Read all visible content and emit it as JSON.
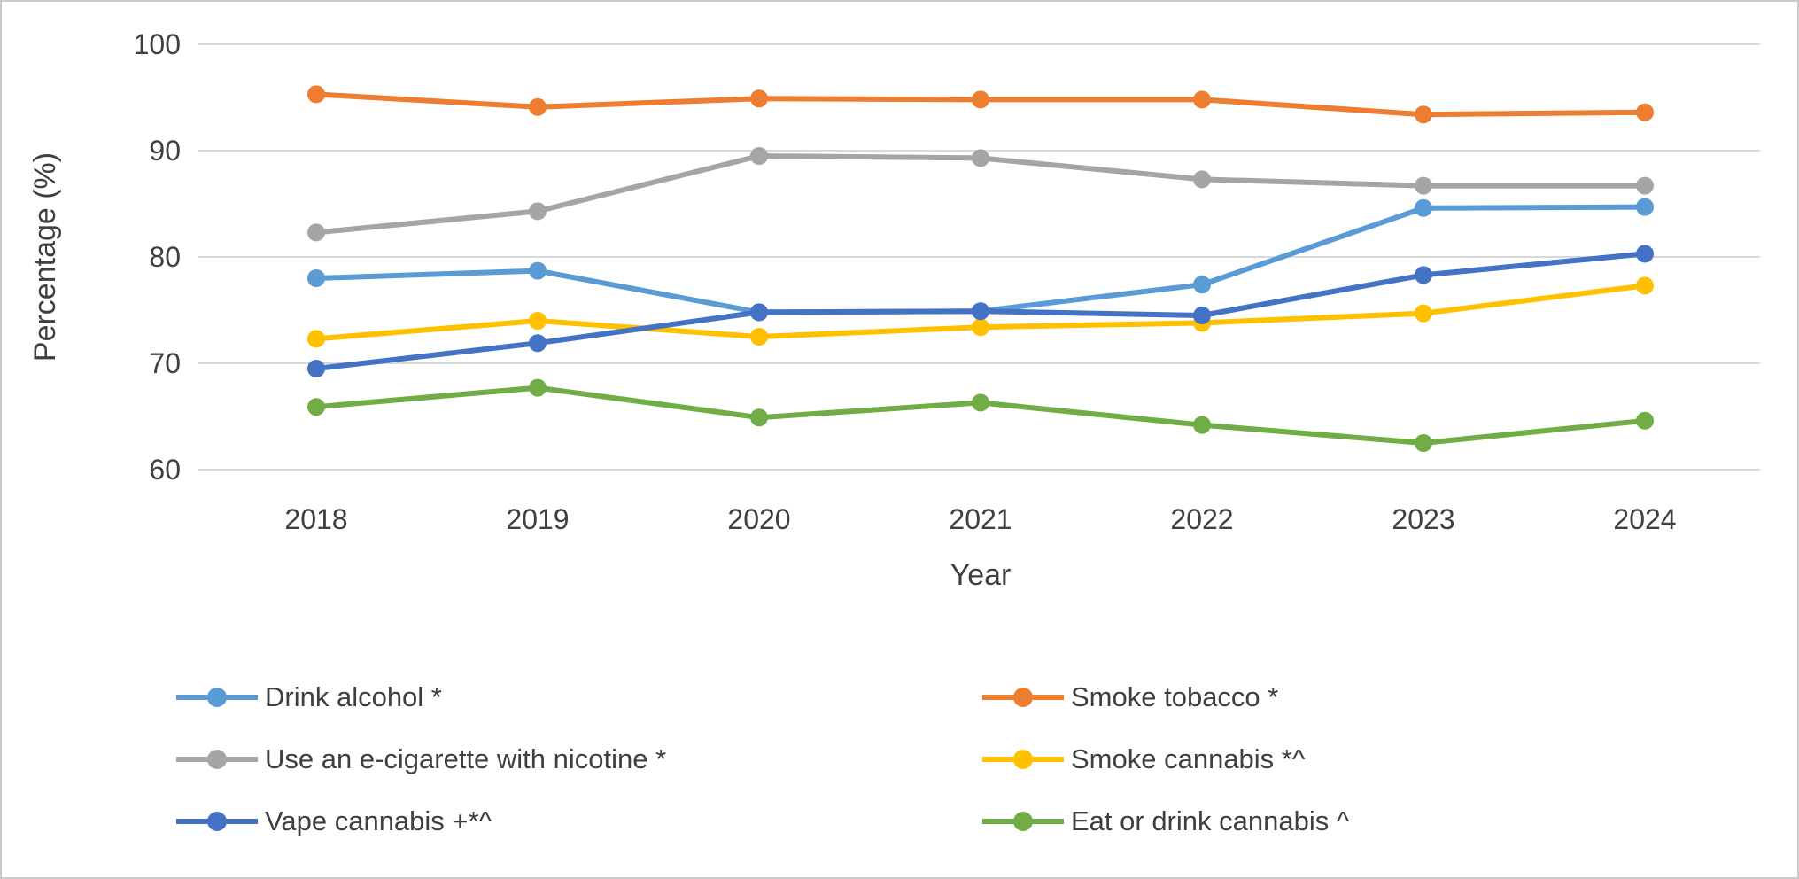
{
  "chart_data": {
    "type": "line",
    "title": "",
    "xlabel": "Year",
    "ylabel": "Percentage (%)",
    "ylim": [
      60,
      100
    ],
    "ytick_step": 10,
    "grid": true,
    "legend_position": "bottom",
    "categories": [
      "2018",
      "2019",
      "2020",
      "2021",
      "2022",
      "2023",
      "2024"
    ],
    "series": [
      {
        "name": "Drink alcohol *",
        "color": "#5B9BD5",
        "values": [
          78.0,
          78.7,
          74.8,
          74.9,
          77.4,
          84.6,
          84.7
        ]
      },
      {
        "name": "Smoke tobacco *",
        "color": "#ED7D31",
        "values": [
          95.3,
          94.1,
          94.9,
          94.8,
          94.8,
          93.4,
          93.6
        ]
      },
      {
        "name": "Use an e-cigarette with nicotine *",
        "color": "#A5A5A5",
        "values": [
          82.3,
          84.3,
          89.5,
          89.3,
          87.3,
          86.7,
          86.7
        ]
      },
      {
        "name": "Smoke cannabis *^",
        "color": "#FFC000",
        "values": [
          72.3,
          74.0,
          72.5,
          73.4,
          73.8,
          74.7,
          77.3
        ]
      },
      {
        "name": "Vape cannabis +*^",
        "color": "#4472C4",
        "values": [
          69.5,
          71.9,
          74.8,
          74.9,
          74.5,
          78.3,
          80.3
        ]
      },
      {
        "name": "Eat or drink cannabis ^",
        "color": "#70AD47",
        "values": [
          65.9,
          67.7,
          64.9,
          66.3,
          64.2,
          62.5,
          64.6
        ]
      }
    ],
    "colors": {
      "gridline": "#d9d9d9",
      "text": "#3f3f3f"
    }
  }
}
